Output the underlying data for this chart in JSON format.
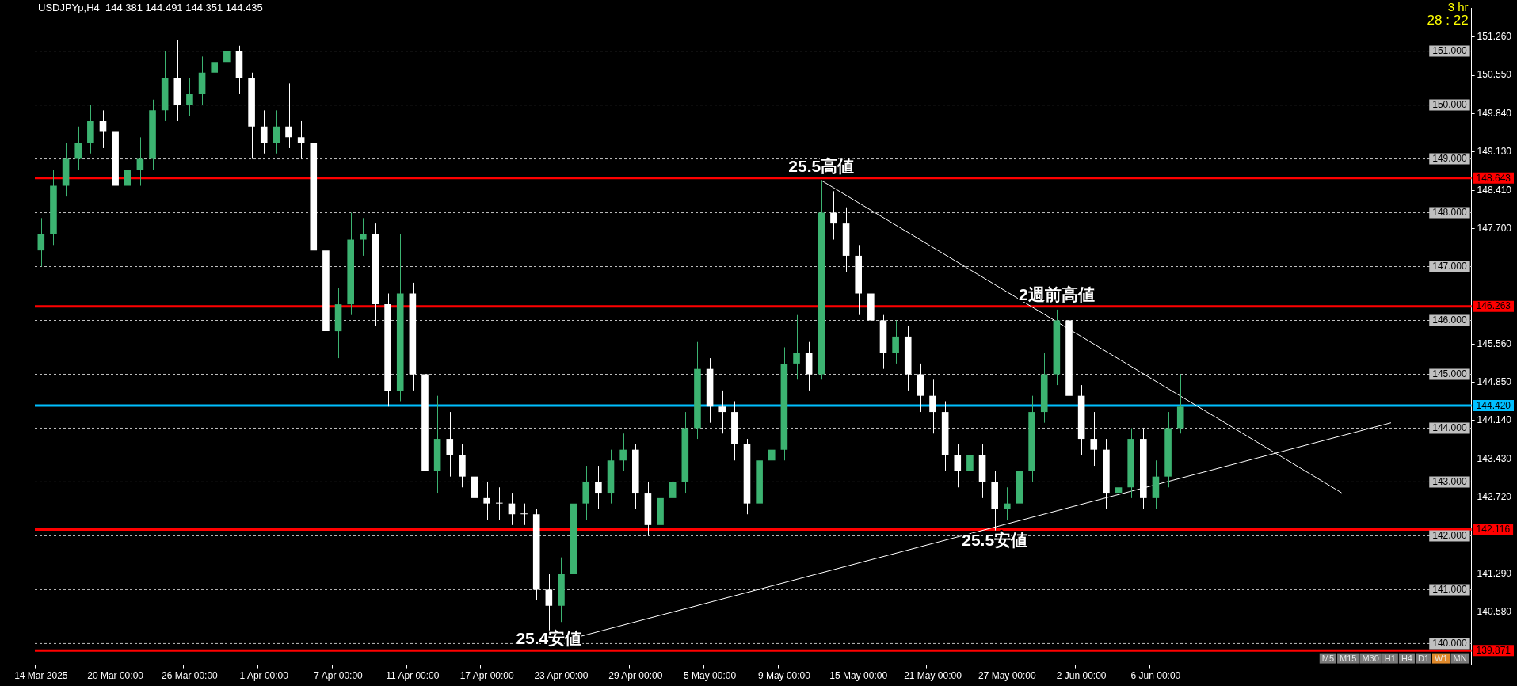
{
  "chart_data": {
    "type": "candlestick",
    "title": "USDJPYp,H4  144.381 144.491 144.351 144.435",
    "categories": [
      "14 Mar 2025",
      null,
      null,
      null,
      null,
      null,
      "20 Mar 00:00",
      null,
      null,
      null,
      null,
      null,
      "26 Mar 00:00",
      null,
      null,
      null,
      null,
      null,
      "1 Apr 00:00",
      null,
      null,
      null,
      null,
      null,
      "7 Apr 00:00",
      null,
      null,
      null,
      null,
      null,
      "11 Apr 00:00",
      null,
      null,
      null,
      null,
      null,
      "17 Apr 00:00",
      null,
      null,
      null,
      null,
      null,
      "23 Apr 00:00",
      null,
      null,
      null,
      null,
      null,
      "29 Apr 00:00",
      null,
      null,
      null,
      null,
      null,
      "5 May 00:00",
      null,
      null,
      null,
      null,
      null,
      "9 May 00:00",
      null,
      null,
      null,
      null,
      null,
      "15 May 00:00",
      null,
      null,
      null,
      null,
      null,
      "21 May 00:00",
      null,
      null,
      null,
      null,
      null,
      "27 May 00:00",
      null,
      null,
      null,
      null,
      null,
      "2 Jun 00:00",
      null,
      null,
      null,
      null,
      null,
      "6 Jun 00:00",
      null,
      null,
      null,
      null,
      null,
      null,
      null,
      null,
      null,
      null,
      null,
      null,
      null,
      null,
      null,
      null,
      null,
      null,
      null,
      null,
      null,
      null,
      null,
      null,
      null
    ],
    "ohlc": [
      [
        147.3,
        147.9,
        147.0,
        147.6
      ],
      [
        147.6,
        148.8,
        147.4,
        148.5
      ],
      [
        148.5,
        149.3,
        148.3,
        149.0
      ],
      [
        149.0,
        149.6,
        148.8,
        149.3
      ],
      [
        149.3,
        150.0,
        149.1,
        149.7
      ],
      [
        149.7,
        149.9,
        149.2,
        149.5
      ],
      [
        149.5,
        149.7,
        148.2,
        148.5
      ],
      [
        148.5,
        149.0,
        148.3,
        148.8
      ],
      [
        148.8,
        149.4,
        148.5,
        149.0
      ],
      [
        149.0,
        150.1,
        148.8,
        149.9
      ],
      [
        149.9,
        151.0,
        149.7,
        150.5
      ],
      [
        150.5,
        151.2,
        149.7,
        150.0
      ],
      [
        150.0,
        150.5,
        149.8,
        150.2
      ],
      [
        150.2,
        150.9,
        150.0,
        150.6
      ],
      [
        150.6,
        151.1,
        150.4,
        150.8
      ],
      [
        150.8,
        151.2,
        150.6,
        151.0
      ],
      [
        151.0,
        151.1,
        150.2,
        150.5
      ],
      [
        150.5,
        150.6,
        149.0,
        149.6
      ],
      [
        149.6,
        149.9,
        149.1,
        149.3
      ],
      [
        149.3,
        149.9,
        149.1,
        149.6
      ],
      [
        149.6,
        150.4,
        149.2,
        149.4
      ],
      [
        149.4,
        149.7,
        149.0,
        149.3
      ],
      [
        149.3,
        149.4,
        147.1,
        147.3
      ],
      [
        147.3,
        147.4,
        145.4,
        145.8
      ],
      [
        145.8,
        146.6,
        145.3,
        146.3
      ],
      [
        146.3,
        148.0,
        146.1,
        147.5
      ],
      [
        147.5,
        147.9,
        147.2,
        147.6
      ],
      [
        147.6,
        147.8,
        145.9,
        146.3
      ],
      [
        146.3,
        146.5,
        144.4,
        144.7
      ],
      [
        144.7,
        147.6,
        144.5,
        146.5
      ],
      [
        146.5,
        146.7,
        144.7,
        145.0
      ],
      [
        145.0,
        145.1,
        142.9,
        143.2
      ],
      [
        143.2,
        144.6,
        142.8,
        143.8
      ],
      [
        143.8,
        144.3,
        143.1,
        143.5
      ],
      [
        143.5,
        143.7,
        142.9,
        143.1
      ],
      [
        143.1,
        143.4,
        142.5,
        142.7
      ],
      [
        142.7,
        143.0,
        142.3,
        142.6
      ],
      [
        142.6,
        142.9,
        142.3,
        142.6
      ],
      [
        142.6,
        142.8,
        142.2,
        142.4
      ],
      [
        142.4,
        142.6,
        142.2,
        142.4
      ],
      [
        142.4,
        142.5,
        140.8,
        141.0
      ],
      [
        141.0,
        141.3,
        140.2,
        140.7
      ],
      [
        140.7,
        141.6,
        140.4,
        141.3
      ],
      [
        141.3,
        142.8,
        141.1,
        142.6
      ],
      [
        142.6,
        143.3,
        142.3,
        143.0
      ],
      [
        143.0,
        143.3,
        142.5,
        142.8
      ],
      [
        142.8,
        143.6,
        142.6,
        143.4
      ],
      [
        143.4,
        143.9,
        143.2,
        143.6
      ],
      [
        143.6,
        143.7,
        142.5,
        142.8
      ],
      [
        142.8,
        143.0,
        142.0,
        142.2
      ],
      [
        142.2,
        143.0,
        142.0,
        142.7
      ],
      [
        142.7,
        143.3,
        142.5,
        143.0
      ],
      [
        143.0,
        144.3,
        142.8,
        144.0
      ],
      [
        144.0,
        145.6,
        143.8,
        145.1
      ],
      [
        145.1,
        145.3,
        144.1,
        144.4
      ],
      [
        144.4,
        144.7,
        143.9,
        144.3
      ],
      [
        144.3,
        144.5,
        143.4,
        143.7
      ],
      [
        143.7,
        143.8,
        142.4,
        142.6
      ],
      [
        142.6,
        143.6,
        142.4,
        143.4
      ],
      [
        143.4,
        144.0,
        143.1,
        143.6
      ],
      [
        143.6,
        145.5,
        143.4,
        145.2
      ],
      [
        145.2,
        146.1,
        144.9,
        145.4
      ],
      [
        145.4,
        145.6,
        144.7,
        145.0
      ],
      [
        145.0,
        148.6,
        144.9,
        148.0
      ],
      [
        148.0,
        148.4,
        147.5,
        147.8
      ],
      [
        147.8,
        148.1,
        146.9,
        147.2
      ],
      [
        147.2,
        147.4,
        146.1,
        146.5
      ],
      [
        146.5,
        146.8,
        145.6,
        146.0
      ],
      [
        146.0,
        146.1,
        145.1,
        145.4
      ],
      [
        145.4,
        146.0,
        145.2,
        145.7
      ],
      [
        145.7,
        145.9,
        144.7,
        145.0
      ],
      [
        145.0,
        145.2,
        144.3,
        144.6
      ],
      [
        144.6,
        144.9,
        143.9,
        144.3
      ],
      [
        144.3,
        144.5,
        143.2,
        143.5
      ],
      [
        143.5,
        143.7,
        142.9,
        143.2
      ],
      [
        143.2,
        143.9,
        143.0,
        143.5
      ],
      [
        143.5,
        143.7,
        142.7,
        143.0
      ],
      [
        143.0,
        143.2,
        142.1,
        142.5
      ],
      [
        142.5,
        142.9,
        142.3,
        142.6
      ],
      [
        142.6,
        143.5,
        142.4,
        143.2
      ],
      [
        143.2,
        144.6,
        143.0,
        144.3
      ],
      [
        144.3,
        145.4,
        144.1,
        145.0
      ],
      [
        145.0,
        146.2,
        144.8,
        146.0
      ],
      [
        146.0,
        146.1,
        144.3,
        144.6
      ],
      [
        144.6,
        144.8,
        143.5,
        143.8
      ],
      [
        143.8,
        144.3,
        143.3,
        143.6
      ],
      [
        143.6,
        143.8,
        142.5,
        142.8
      ],
      [
        142.8,
        143.3,
        142.6,
        142.9
      ],
      [
        142.9,
        144.0,
        142.7,
        143.8
      ],
      [
        143.8,
        144.0,
        142.5,
        142.7
      ],
      [
        142.7,
        143.4,
        142.5,
        143.1
      ],
      [
        143.1,
        144.3,
        142.9,
        144.0
      ],
      [
        144.0,
        145.0,
        143.9,
        144.4
      ],
      null,
      null,
      null,
      null,
      null,
      null,
      null,
      null,
      null,
      null,
      null,
      null,
      null,
      null,
      null,
      null,
      null,
      null,
      null,
      null,
      null,
      null,
      null
    ],
    "colors": [
      "#3cb371",
      "#3cb371",
      "#3cb371",
      "#3cb371",
      "#3cb371",
      "#ffffff",
      "#ffffff",
      "#3cb371",
      "#3cb371",
      "#3cb371",
      "#3cb371",
      "#ffffff",
      "#3cb371",
      "#3cb371",
      "#3cb371",
      "#3cb371",
      "#ffffff",
      "#ffffff",
      "#ffffff",
      "#3cb371",
      "#ffffff",
      "#ffffff",
      "#ffffff",
      "#ffffff",
      "#3cb371",
      "#3cb371",
      "#3cb371",
      "#ffffff",
      "#ffffff",
      "#3cb371",
      "#ffffff",
      "#ffffff",
      "#3cb371",
      "#ffffff",
      "#ffffff",
      "#ffffff",
      "#ffffff",
      "#ffffff",
      "#ffffff",
      "#ffffff",
      "#ffffff",
      "#ffffff",
      "#3cb371",
      "#3cb371",
      "#3cb371",
      "#ffffff",
      "#3cb371",
      "#3cb371",
      "#ffffff",
      "#ffffff",
      "#3cb371",
      "#3cb371",
      "#3cb371",
      "#3cb371",
      "#ffffff",
      "#ffffff",
      "#ffffff",
      "#ffffff",
      "#3cb371",
      "#3cb371",
      "#3cb371",
      "#3cb371",
      "#ffffff",
      "#3cb371",
      "#ffffff",
      "#ffffff",
      "#ffffff",
      "#ffffff",
      "#ffffff",
      "#3cb371",
      "#ffffff",
      "#ffffff",
      "#ffffff",
      "#ffffff",
      "#ffffff",
      "#3cb371",
      "#ffffff",
      "#ffffff",
      "#3cb371",
      "#3cb371",
      "#3cb371",
      "#3cb371",
      "#3cb371",
      "#ffffff",
      "#ffffff",
      "#ffffff",
      "#ffffff",
      "#3cb371",
      "#3cb371",
      "#ffffff",
      "#3cb371",
      "#3cb371",
      "#3cb371",
      null,
      null,
      null,
      null,
      null,
      null,
      null,
      null,
      null,
      null,
      null,
      null,
      null,
      null,
      null,
      null,
      null,
      null,
      null,
      null,
      null,
      null,
      null
    ],
    "series": [
      {
        "type": "line",
        "color": "#ffffff",
        "values": [
          null,
          null,
          null,
          null,
          null,
          null,
          null,
          null,
          null,
          null,
          null,
          null,
          null,
          null,
          null,
          null,
          null,
          null,
          null,
          null,
          null,
          null,
          null,
          null,
          null,
          null,
          null,
          null,
          null,
          null,
          null,
          null,
          null,
          null,
          null,
          null,
          null,
          null,
          null,
          null,
          null,
          null,
          null,
          null,
          null,
          null,
          null,
          null,
          null,
          null,
          null,
          null,
          null,
          null,
          null,
          null,
          null,
          null,
          null,
          null,
          null,
          null,
          null,
          148.6,
          null,
          null,
          null,
          null,
          null,
          null,
          null,
          null,
          null,
          null,
          null,
          null,
          null,
          null,
          null,
          null,
          null,
          null,
          null,
          null,
          null,
          null,
          null,
          null,
          null,
          null,
          null,
          null,
          null,
          null,
          null,
          null,
          null,
          null,
          null,
          null,
          null,
          null,
          null,
          null,
          null,
          142.8,
          null,
          null,
          null,
          null,
          null,
          null,
          null,
          null,
          null,
          null
        ]
      },
      {
        "type": "line",
        "color": "#ffffff",
        "values": [
          null,
          null,
          null,
          null,
          null,
          null,
          null,
          null,
          null,
          null,
          null,
          null,
          null,
          null,
          null,
          null,
          null,
          null,
          null,
          null,
          null,
          null,
          null,
          null,
          null,
          null,
          null,
          null,
          null,
          null,
          null,
          null,
          null,
          null,
          null,
          null,
          null,
          null,
          null,
          null,
          null,
          null,
          null,
          140.1,
          null,
          null,
          null,
          null,
          null,
          null,
          null,
          null,
          null,
          null,
          null,
          null,
          null,
          null,
          null,
          null,
          null,
          null,
          null,
          null,
          null,
          null,
          null,
          null,
          null,
          null,
          null,
          null,
          null,
          null,
          null,
          null,
          null,
          null,
          null,
          null,
          null,
          null,
          null,
          null,
          null,
          null,
          null,
          null,
          null,
          null,
          null,
          null,
          null,
          null,
          null,
          null,
          null,
          null,
          null,
          null,
          null,
          null,
          null,
          null,
          null,
          null,
          null,
          null,
          null,
          144.1,
          null,
          null,
          null,
          null,
          null,
          null
        ]
      }
    ],
    "ylim": [
      139.6,
      151.8
    ],
    "yticks": [
      {
        "value": 140.58,
        "label": "140.580"
      },
      {
        "value": 141.29,
        "label": "141.290"
      },
      {
        "value": 142.72,
        "label": "142.720"
      },
      {
        "value": 143.43,
        "label": "143.430"
      },
      {
        "value": 144.14,
        "label": "144.140"
      },
      {
        "value": 144.85,
        "label": "144.850"
      },
      {
        "value": 145.56,
        "label": "145.560"
      },
      {
        "value": 147.7,
        "label": "147.700"
      },
      {
        "value": 148.41,
        "label": "148.410"
      },
      {
        "value": 149.13,
        "label": "149.130"
      },
      {
        "value": 149.84,
        "label": "149.840"
      },
      {
        "value": 150.55,
        "label": "150.550"
      },
      {
        "value": 151.26,
        "label": "151.260"
      }
    ],
    "ref_lines": [
      {
        "axis": "y",
        "value": 140,
        "label": "140.000",
        "color": "#c0c0c0",
        "line_style": "dashed"
      },
      {
        "axis": "y",
        "value": 141,
        "label": "141.000",
        "color": "#c0c0c0",
        "line_style": "dashed"
      },
      {
        "axis": "y",
        "value": 142,
        "label": "142.000",
        "color": "#c0c0c0",
        "line_style": "dashed"
      },
      {
        "axis": "y",
        "value": 143,
        "label": "143.000",
        "color": "#c0c0c0",
        "line_style": "dashed"
      },
      {
        "axis": "y",
        "value": 144,
        "label": "144.000",
        "color": "#c0c0c0",
        "line_style": "dashed"
      },
      {
        "axis": "y",
        "value": 145,
        "label": "145.000",
        "color": "#c0c0c0",
        "line_style": "dashed"
      },
      {
        "axis": "y",
        "value": 146,
        "label": "146.000",
        "color": "#c0c0c0",
        "line_style": "dashed"
      },
      {
        "axis": "y",
        "value": 147,
        "label": "147.000",
        "color": "#c0c0c0",
        "line_style": "dashed"
      },
      {
        "axis": "y",
        "value": 148,
        "label": "148.000",
        "color": "#c0c0c0",
        "line_style": "dashed"
      },
      {
        "axis": "y",
        "value": 149,
        "label": "149.000",
        "color": "#c0c0c0",
        "line_style": "dashed"
      },
      {
        "axis": "y",
        "value": 150,
        "label": "150.000",
        "color": "#c0c0c0",
        "line_style": "dashed"
      },
      {
        "axis": "y",
        "value": 151,
        "label": "151.000",
        "color": "#c0c0c0",
        "line_style": "dashed"
      },
      {
        "axis": "y",
        "value": 148.643,
        "label": "148.643",
        "color": "#ff0000",
        "line_style": "solid"
      },
      {
        "axis": "y",
        "value": 146.263,
        "label": "146.263",
        "color": "#ff0000",
        "line_style": "solid"
      },
      {
        "axis": "y",
        "value": 144.42,
        "label": "144.420",
        "color": "#00bfff",
        "line_style": "solid"
      },
      {
        "axis": "y",
        "value": 142.116,
        "label": "142.116",
        "color": "#ff0000",
        "line_style": "solid"
      },
      {
        "axis": "y",
        "value": 139.871,
        "label": "139.871",
        "color": "#ff0000",
        "line_style": "solid"
      }
    ],
    "annotations": [
      "3 hr",
      "28 : 22",
      "M5",
      "M15",
      "M30",
      "H1",
      "H4",
      "D1",
      "W1",
      "MN",
      {
        "text": "25.5高値",
        "y": 148.643
      },
      {
        "text": "2週前高値",
        "y": 146.263
      },
      {
        "text": "25.5安値",
        "y": 142.116
      },
      {
        "text": "25.4安値",
        "y": 139.871
      }
    ],
    "legend": false
  }
}
